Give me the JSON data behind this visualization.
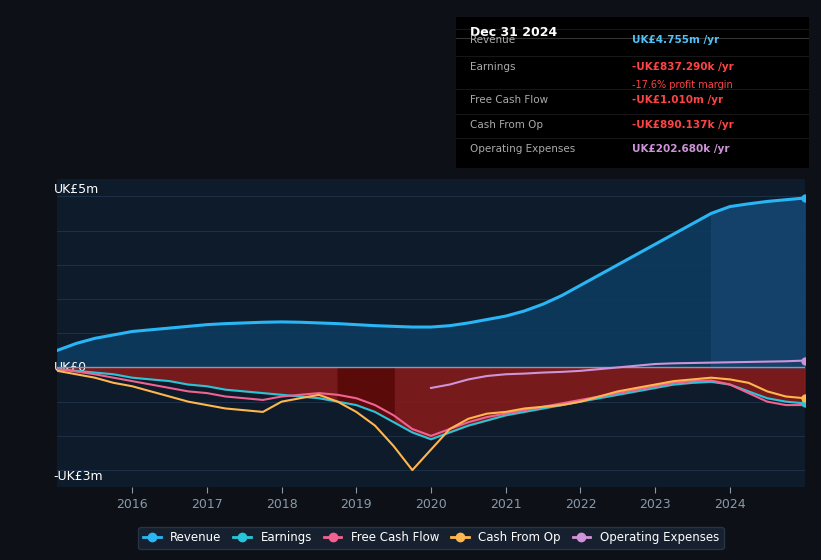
{
  "bg_color": "#0d1117",
  "plot_bg_color": "#0d1b2a",
  "grid_color": "#1e3048",
  "zero_line_color": "#8899aa",
  "years": [
    2015.0,
    2015.25,
    2015.5,
    2015.75,
    2016.0,
    2016.25,
    2016.5,
    2016.75,
    2017.0,
    2017.25,
    2017.5,
    2017.75,
    2018.0,
    2018.25,
    2018.5,
    2018.75,
    2019.0,
    2019.25,
    2019.5,
    2019.75,
    2020.0,
    2020.25,
    2020.5,
    2020.75,
    2021.0,
    2021.25,
    2021.5,
    2021.75,
    2022.0,
    2022.25,
    2022.5,
    2022.75,
    2023.0,
    2023.25,
    2023.5,
    2023.75,
    2024.0,
    2024.25,
    2024.5,
    2024.75,
    2025.0
  ],
  "revenue": [
    0.5,
    0.7,
    0.85,
    0.95,
    1.05,
    1.1,
    1.15,
    1.2,
    1.25,
    1.28,
    1.3,
    1.32,
    1.33,
    1.32,
    1.3,
    1.28,
    1.25,
    1.22,
    1.2,
    1.18,
    1.18,
    1.22,
    1.3,
    1.4,
    1.5,
    1.65,
    1.85,
    2.1,
    2.4,
    2.7,
    3.0,
    3.3,
    3.6,
    3.9,
    4.2,
    4.5,
    4.7,
    4.78,
    4.85,
    4.9,
    4.95
  ],
  "earnings": [
    -0.05,
    -0.1,
    -0.15,
    -0.2,
    -0.3,
    -0.35,
    -0.4,
    -0.5,
    -0.55,
    -0.65,
    -0.7,
    -0.75,
    -0.8,
    -0.85,
    -0.9,
    -1.0,
    -1.1,
    -1.3,
    -1.6,
    -1.9,
    -2.1,
    -1.9,
    -1.7,
    -1.55,
    -1.4,
    -1.3,
    -1.2,
    -1.1,
    -1.0,
    -0.9,
    -0.8,
    -0.7,
    -0.6,
    -0.5,
    -0.45,
    -0.42,
    -0.5,
    -0.7,
    -0.9,
    -1.0,
    -1.05
  ],
  "free_cash_flow": [
    -0.05,
    -0.12,
    -0.2,
    -0.3,
    -0.4,
    -0.5,
    -0.6,
    -0.7,
    -0.75,
    -0.85,
    -0.9,
    -0.95,
    -0.85,
    -0.8,
    -0.75,
    -0.8,
    -0.9,
    -1.1,
    -1.4,
    -1.8,
    -2.0,
    -1.8,
    -1.6,
    -1.45,
    -1.35,
    -1.25,
    -1.15,
    -1.05,
    -0.95,
    -0.85,
    -0.75,
    -0.65,
    -0.55,
    -0.45,
    -0.4,
    -0.38,
    -0.5,
    -0.75,
    -1.0,
    -1.1,
    -1.1
  ],
  "cash_from_op": [
    -0.1,
    -0.2,
    -0.3,
    -0.45,
    -0.55,
    -0.7,
    -0.85,
    -1.0,
    -1.1,
    -1.2,
    -1.25,
    -1.3,
    -1.0,
    -0.9,
    -0.8,
    -1.0,
    -1.3,
    -1.7,
    -2.3,
    -3.0,
    -2.4,
    -1.8,
    -1.5,
    -1.35,
    -1.3,
    -1.2,
    -1.15,
    -1.1,
    -1.0,
    -0.85,
    -0.7,
    -0.6,
    -0.5,
    -0.4,
    -0.35,
    -0.3,
    -0.35,
    -0.45,
    -0.7,
    -0.85,
    -0.9
  ],
  "operating_expenses": [
    null,
    null,
    null,
    null,
    null,
    null,
    null,
    null,
    null,
    null,
    null,
    null,
    null,
    null,
    null,
    null,
    null,
    null,
    null,
    null,
    -0.6,
    -0.5,
    -0.35,
    -0.25,
    -0.2,
    -0.18,
    -0.15,
    -0.13,
    -0.1,
    -0.05,
    0.0,
    0.05,
    0.1,
    0.12,
    0.13,
    0.14,
    0.15,
    0.16,
    0.17,
    0.18,
    0.2
  ],
  "revenue_color": "#29b6f6",
  "earnings_color": "#26c6da",
  "free_cash_flow_color": "#f06292",
  "cash_from_op_color": "#ffb74d",
  "operating_expenses_color": "#ce93d8",
  "ylim": [
    -3.5,
    5.5
  ],
  "xticks": [
    2016,
    2017,
    2018,
    2019,
    2020,
    2021,
    2022,
    2023,
    2024
  ],
  "table_rows": [
    {
      "label": "Revenue",
      "value": "UK£4.755m /yr",
      "color": "#4fc3f7",
      "sub": null,
      "sub_color": null
    },
    {
      "label": "Earnings",
      "value": "-UK£837.290k /yr",
      "color": "#ff4444",
      "sub": "-17.6% profit margin",
      "sub_color": "#ff4444"
    },
    {
      "label": "Free Cash Flow",
      "value": "-UK£1.010m /yr",
      "color": "#ff4444",
      "sub": null,
      "sub_color": null
    },
    {
      "label": "Cash From Op",
      "value": "-UK£890.137k /yr",
      "color": "#ff4444",
      "sub": null,
      "sub_color": null
    },
    {
      "label": "Operating Expenses",
      "value": "UK£202.680k /yr",
      "color": "#ce93d8",
      "sub": null,
      "sub_color": null
    }
  ],
  "table_title": "Dec 31 2024",
  "ylabel_5m": "UK£5m",
  "ylabel_0": "UK£0",
  "ylabel_neg3m": "-UK£3m"
}
